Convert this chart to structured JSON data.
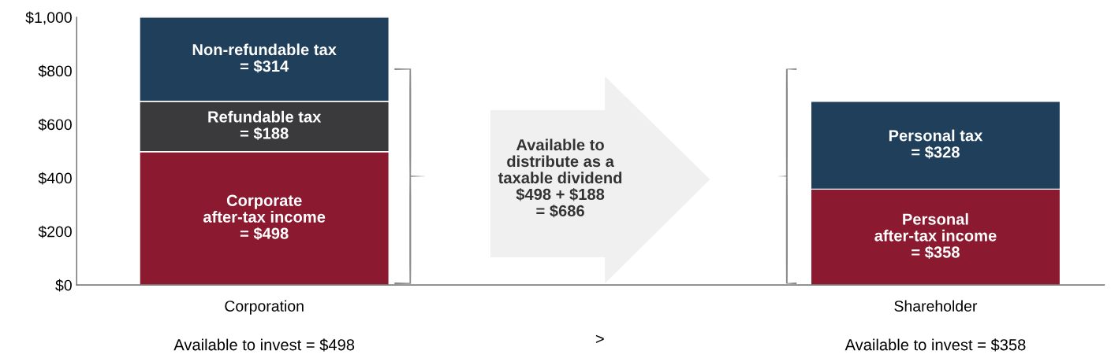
{
  "chart_data": {
    "type": "bar",
    "stacked": true,
    "categories": [
      "Corporation",
      null,
      "Shareholder"
    ],
    "series": [
      {
        "color": "#8b1a30",
        "values": [
          498,
          null,
          358
        ],
        "value_labels": [
          "Corporate\nafter-tax income\n= $498",
          null,
          "Personal\nafter-tax income\n= $358"
        ]
      },
      {
        "color": "#3a3a3c",
        "values": [
          188,
          null,
          null
        ],
        "value_labels": [
          "Refundable tax\n= $188",
          null,
          null
        ]
      },
      {
        "color": "#1f3f5a",
        "values": [
          314,
          null,
          328
        ],
        "value_labels": [
          "Non-refundable tax\n= $314",
          null,
          "Personal tax\n= $328"
        ]
      }
    ],
    "ylim": [
      0,
      1000
    ],
    "yticks": [
      {
        "value": 0,
        "label": "$0"
      },
      {
        "value": 200,
        "label": "$200"
      },
      {
        "value": 400,
        "label": "$400"
      },
      {
        "value": 600,
        "label": "$600"
      },
      {
        "value": 800,
        "label": "$800"
      },
      {
        "value": 1000,
        "label": "$1,000"
      }
    ],
    "grid": false,
    "annotations": [
      "Available to invest = $498",
      ">",
      "Available to invest = $358",
      "Available to\ndistribute as a\ntaxable dividend\n$498 + $188\n= $686"
    ]
  }
}
